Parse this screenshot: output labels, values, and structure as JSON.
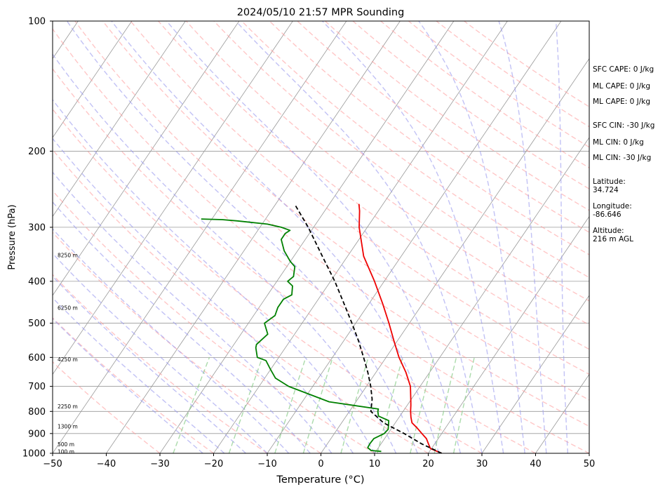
{
  "chart_data": {
    "type": "skew-t",
    "title": "2024/05/10 21:57 MPR Sounding",
    "xlabel": "Temperature (°C)",
    "ylabel": "Pressure (hPa)",
    "xlim": [
      -50,
      50
    ],
    "ylim": [
      1000,
      100
    ],
    "y_scale": "log",
    "grid": true,
    "x_ticks": [
      "−50",
      "−40",
      "−30",
      "−20",
      "−10",
      "0",
      "10",
      "20",
      "30",
      "40",
      "50"
    ],
    "y_ticks": [
      "100",
      "200",
      "300",
      "400",
      "500",
      "600",
      "700",
      "800",
      "900",
      "1000"
    ],
    "colors": {
      "temperature": "#ee0000",
      "dewpoint": "#008000",
      "parcel": "#000000",
      "dry_adiabat": "#ff9999",
      "moist_adiabat": "#9999ee",
      "mixing_ratio": "#88cc88",
      "isotherm": "#999999"
    },
    "series": [
      {
        "key": "temperature",
        "points": [
          [
            1000,
            22.5
          ],
          [
            975,
            19.8
          ],
          [
            950,
            18.8
          ],
          [
            925,
            17.8
          ],
          [
            900,
            16.3
          ],
          [
            875,
            14.8
          ],
          [
            850,
            13.1
          ],
          [
            825,
            12.2
          ],
          [
            800,
            11.4
          ],
          [
            775,
            10.7
          ],
          [
            750,
            9.9
          ],
          [
            700,
            8.2
          ],
          [
            650,
            5.6
          ],
          [
            600,
            2.4
          ],
          [
            550,
            -0.6
          ],
          [
            500,
            -3.8
          ],
          [
            450,
            -7.5
          ],
          [
            400,
            -11.8
          ],
          [
            350,
            -17.0
          ],
          [
            300,
            -21.5
          ],
          [
            275,
            -23.5
          ],
          [
            265,
            -24.5
          ]
        ]
      },
      {
        "key": "dewpoint",
        "points": [
          [
            990,
            11.0
          ],
          [
            985,
            9.0
          ],
          [
            970,
            8.0
          ],
          [
            950,
            7.9
          ],
          [
            925,
            8.0
          ],
          [
            900,
            9.3
          ],
          [
            880,
            9.5
          ],
          [
            860,
            9.0
          ],
          [
            840,
            8.5
          ],
          [
            820,
            6.0
          ],
          [
            800,
            5.3
          ],
          [
            790,
            5.1
          ],
          [
            760,
            -5.0
          ],
          [
            700,
            -14.5
          ],
          [
            670,
            -18.0
          ],
          [
            640,
            -20.0
          ],
          [
            610,
            -22.0
          ],
          [
            600,
            -24.0
          ],
          [
            570,
            -25.5
          ],
          [
            560,
            -25.8
          ],
          [
            530,
            -25.0
          ],
          [
            500,
            -27.0
          ],
          [
            480,
            -26.0
          ],
          [
            460,
            -26.5
          ],
          [
            440,
            -26.5
          ],
          [
            430,
            -25.5
          ],
          [
            410,
            -26.5
          ],
          [
            400,
            -28.0
          ],
          [
            390,
            -27.5
          ],
          [
            370,
            -28.5
          ],
          [
            360,
            -30.0
          ],
          [
            340,
            -32.5
          ],
          [
            320,
            -34.5
          ],
          [
            310,
            -34.5
          ],
          [
            305,
            -34.0
          ],
          [
            300,
            -36.0
          ],
          [
            295,
            -39.0
          ],
          [
            290,
            -45.0
          ],
          [
            288,
            -48.0
          ],
          [
            287,
            -52.0
          ]
        ]
      },
      {
        "key": "parcel",
        "points": [
          [
            1000,
            22.5
          ],
          [
            950,
            17.5
          ],
          [
            900,
            13.0
          ],
          [
            850,
            7.8
          ],
          [
            800,
            4.0
          ],
          [
            750,
            2.7
          ],
          [
            700,
            0.8
          ],
          [
            650,
            -1.5
          ],
          [
            600,
            -4.2
          ],
          [
            550,
            -7.2
          ],
          [
            500,
            -10.7
          ],
          [
            450,
            -14.7
          ],
          [
            400,
            -19.2
          ],
          [
            350,
            -24.7
          ],
          [
            300,
            -31.0
          ],
          [
            265,
            -36.5
          ]
        ]
      }
    ],
    "altitude_labels": [
      {
        "p": 990,
        "text": "100 m"
      },
      {
        "p": 952,
        "text": "500 m"
      },
      {
        "p": 866,
        "text": "1300 m"
      },
      {
        "p": 779,
        "text": "2250 m"
      },
      {
        "p": 606,
        "text": "4250 m"
      },
      {
        "p": 460,
        "text": "6250 m"
      },
      {
        "p": 348,
        "text": "8250 m"
      }
    ]
  },
  "side_panel": {
    "sfc_cape": "SFC CAPE: 0 J/kg",
    "ml_cape_1": "ML CAPE: 0 J/kg",
    "ml_cape_2": "ML CAPE: 0 J/kg",
    "sfc_cin": "SFC CIN: -30 J/kg",
    "ml_cin_1": "ML CIN: 0 J/kg",
    "ml_cin_2": "ML CIN: -30 J/kg",
    "latitude_label": "Latitude:",
    "latitude_value": "34.724",
    "longitude_label": "Longitude:",
    "longitude_value": "-86.646",
    "altitude_label": "Altitude:",
    "altitude_value": "216 m AGL"
  }
}
